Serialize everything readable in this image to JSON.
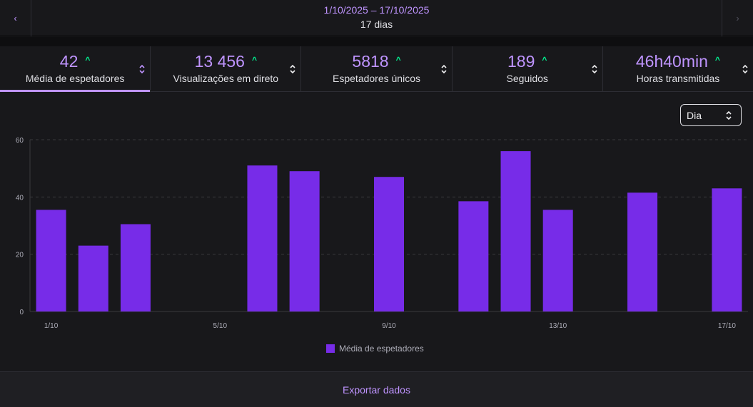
{
  "header": {
    "date_range": "1/10/2025 – 17/10/2025",
    "days": "17 dias"
  },
  "tabs": [
    {
      "value": "42",
      "label": "Média de espetadores",
      "active": true
    },
    {
      "value": "13 456",
      "label": "Visualizações em direto",
      "active": false
    },
    {
      "value": "5818",
      "label": "Espetadores únicos",
      "active": false
    },
    {
      "value": "189",
      "label": "Seguidos",
      "active": false
    },
    {
      "value": "46h40min",
      "label": "Horas transmitidas",
      "active": false
    }
  ],
  "granularity": {
    "selected": "Dia"
  },
  "colors": {
    "accent": "#bf94ff",
    "bar": "#772ce8",
    "up": "#00f593"
  },
  "chart_data": {
    "type": "bar",
    "categories": [
      "1/10",
      "2/10",
      "3/10",
      "4/10",
      "5/10",
      "6/10",
      "7/10",
      "8/10",
      "9/10",
      "10/10",
      "11/10",
      "12/10",
      "13/10",
      "14/10",
      "15/10",
      "16/10",
      "17/10"
    ],
    "x_tick_labels": [
      "1/10",
      "5/10",
      "9/10",
      "13/10",
      "17/10"
    ],
    "series": [
      {
        "name": "Média de espetadores",
        "values": [
          35.5,
          23,
          30.5,
          0,
          0,
          51,
          49,
          0,
          47,
          0,
          38.5,
          56,
          35.5,
          0,
          41.5,
          0,
          43
        ]
      }
    ],
    "ylim": [
      0,
      60
    ],
    "yticks": [
      0,
      20,
      40,
      60
    ],
    "grid": true,
    "legend": "bottom-center"
  },
  "footer": {
    "export_label": "Exportar dados"
  }
}
